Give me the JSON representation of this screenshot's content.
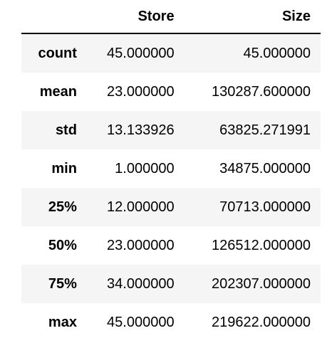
{
  "table": {
    "columns": [
      "",
      "Store",
      "Size"
    ],
    "rows": [
      {
        "index": "count",
        "store": "45.000000",
        "size": "45.000000"
      },
      {
        "index": "mean",
        "store": "23.000000",
        "size": "130287.600000"
      },
      {
        "index": "std",
        "store": "13.133926",
        "size": "63825.271991"
      },
      {
        "index": "min",
        "store": "1.000000",
        "size": "34875.000000"
      },
      {
        "index": "25%",
        "store": "12.000000",
        "size": "70713.000000"
      },
      {
        "index": "50%",
        "store": "23.000000",
        "size": "126512.000000"
      },
      {
        "index": "75%",
        "store": "34.000000",
        "size": "202307.000000"
      },
      {
        "index": "max",
        "store": "45.000000",
        "size": "219622.000000"
      }
    ]
  },
  "colors": {
    "stripe": "#f5f5f5",
    "background": "#ffffff",
    "text": "#000000"
  }
}
